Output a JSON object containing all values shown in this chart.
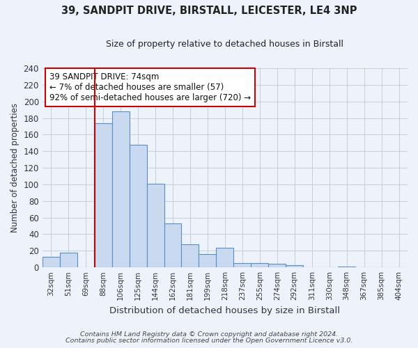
{
  "title1": "39, SANDPIT DRIVE, BIRSTALL, LEICESTER, LE4 3NP",
  "title2": "Size of property relative to detached houses in Birstall",
  "xlabel": "Distribution of detached houses by size in Birstall",
  "ylabel": "Number of detached properties",
  "bar_labels": [
    "32sqm",
    "51sqm",
    "69sqm",
    "88sqm",
    "106sqm",
    "125sqm",
    "144sqm",
    "162sqm",
    "181sqm",
    "199sqm",
    "218sqm",
    "237sqm",
    "255sqm",
    "274sqm",
    "292sqm",
    "311sqm",
    "330sqm",
    "348sqm",
    "367sqm",
    "385sqm",
    "404sqm"
  ],
  "bar_values": [
    13,
    18,
    0,
    174,
    188,
    148,
    101,
    53,
    28,
    16,
    24,
    5,
    5,
    4,
    3,
    0,
    0,
    1,
    0,
    0,
    0
  ],
  "bar_color": "#c9d9f0",
  "bar_edgecolor": "#5b8ec2",
  "vline_x": 2.5,
  "vline_color": "#cc0000",
  "ylim": [
    0,
    240
  ],
  "yticks": [
    0,
    20,
    40,
    60,
    80,
    100,
    120,
    140,
    160,
    180,
    200,
    220,
    240
  ],
  "annotation_title": "39 SANDPIT DRIVE: 74sqm",
  "annotation_line1": "← 7% of detached houses are smaller (57)",
  "annotation_line2": "92% of semi-detached houses are larger (720) →",
  "annotation_box_color": "#ffffff",
  "annotation_box_edgecolor": "#cc0000",
  "footer1": "Contains HM Land Registry data © Crown copyright and database right 2024.",
  "footer2": "Contains public sector information licensed under the Open Government Licence v3.0.",
  "background_color": "#eef3fb",
  "plot_bg_color": "#eef3fb"
}
